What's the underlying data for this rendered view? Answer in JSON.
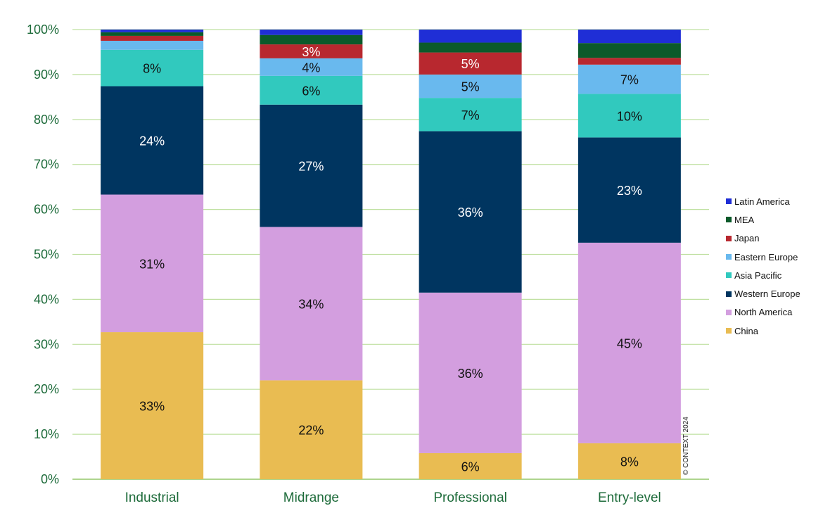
{
  "chart_data": {
    "type": "bar",
    "stacked": true,
    "categories": [
      "Industrial",
      "Midrange",
      "Professional",
      "Entry-level"
    ],
    "yticks": [
      "0%",
      "10%",
      "20%",
      "30%",
      "40%",
      "50%",
      "60%",
      "70%",
      "80%",
      "90%",
      "100%"
    ],
    "ylim": [
      0,
      100
    ],
    "grid": true,
    "legend_position": "right",
    "series": [
      {
        "name": "China",
        "color": "#E9BC52",
        "values": [
          32.7,
          22.0,
          5.8,
          8.0
        ],
        "labels": [
          "33%",
          "22%",
          "6%",
          "8%"
        ],
        "label_color": "#111111"
      },
      {
        "name": "North America",
        "color": "#D39EDF",
        "values": [
          30.6,
          34.1,
          35.7,
          44.6
        ],
        "labels": [
          "31%",
          "34%",
          "36%",
          "45%"
        ],
        "label_color": "#111111"
      },
      {
        "name": "Western Europe",
        "color": "#003560",
        "values": [
          24.1,
          27.2,
          35.9,
          23.4
        ],
        "labels": [
          "24%",
          "27%",
          "36%",
          "23%"
        ],
        "label_color": "#ffffff"
      },
      {
        "name": "Asia Pacific",
        "color": "#31C9BE",
        "values": [
          8.1,
          6.4,
          7.4,
          9.7
        ],
        "labels": [
          "8%",
          "6%",
          "7%",
          "10%"
        ],
        "label_color": "#111111"
      },
      {
        "name": "Eastern Europe",
        "color": "#69B9EE",
        "values": [
          2.0,
          3.9,
          5.2,
          6.5
        ],
        "labels": [
          "",
          "4%",
          "5%",
          "7%"
        ],
        "label_color": "#111111"
      },
      {
        "name": "Japan",
        "color": "#B8282F",
        "values": [
          1.1,
          3.1,
          4.9,
          1.5
        ],
        "labels": [
          "",
          "3%",
          "5%",
          ""
        ],
        "label_color": "#ffffff"
      },
      {
        "name": "MEA",
        "color": "#0B5A2A",
        "values": [
          0.8,
          2.1,
          2.2,
          3.3
        ],
        "labels": [
          "",
          "",
          "",
          ""
        ],
        "label_color": "#ffffff"
      },
      {
        "name": "Latin America",
        "color": "#1F2ED6",
        "values": [
          0.6,
          1.2,
          2.9,
          3.0
        ],
        "labels": [
          "",
          "",
          "",
          ""
        ],
        "label_color": "#ffffff"
      }
    ],
    "legend_order": [
      "Latin America",
      "MEA",
      "Japan",
      "Eastern Europe",
      "Asia Pacific",
      "Western Europe",
      "North America",
      "China"
    ]
  },
  "copyright": "© CONTEXT 2024",
  "colors": {
    "axis_text": "#1D6B3A",
    "grid": "#BFE0A0",
    "axis_line": "#AED58E"
  }
}
